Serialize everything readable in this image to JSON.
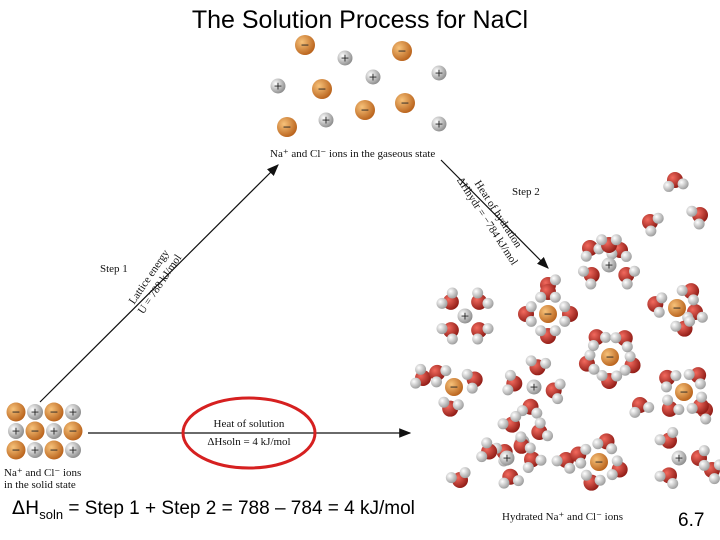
{
  "title": "The Solution Process for NaCl",
  "labels": {
    "gaseous_state": "Na⁺ and Cl⁻ ions in the gaseous state",
    "step1": "Step 1",
    "step2": "Step 2",
    "lattice_line1": "Lattice energy",
    "lattice_line2": "U = 788 kJ/mol",
    "hydration_line1": "Heat of hydration",
    "hydration_line2": "ΔHhydr = −784 kJ/mol",
    "solid_line1": "Na⁺ and Cl⁻ ions",
    "solid_line2": "in the solid state",
    "hydrated": "Hydrated Na⁺ and Cl⁻ ions",
    "heat_of_solution": "Heat of solution",
    "heat_of_solution_value": "ΔHsoln = 4 kJ/mol"
  },
  "equation": {
    "symbol": "ΔH",
    "subscript": "soln",
    "rest": " = Step 1 + Step 2 = 788 – 784 = 4 kJ/mol"
  },
  "page_number": "6.7",
  "colors": {
    "sodium": "#d9822b",
    "chloride": "#a8a8a8",
    "oxygen": "#c8302a",
    "hydrogen": "#dcdcdc",
    "highlight": "#d62020"
  }
}
